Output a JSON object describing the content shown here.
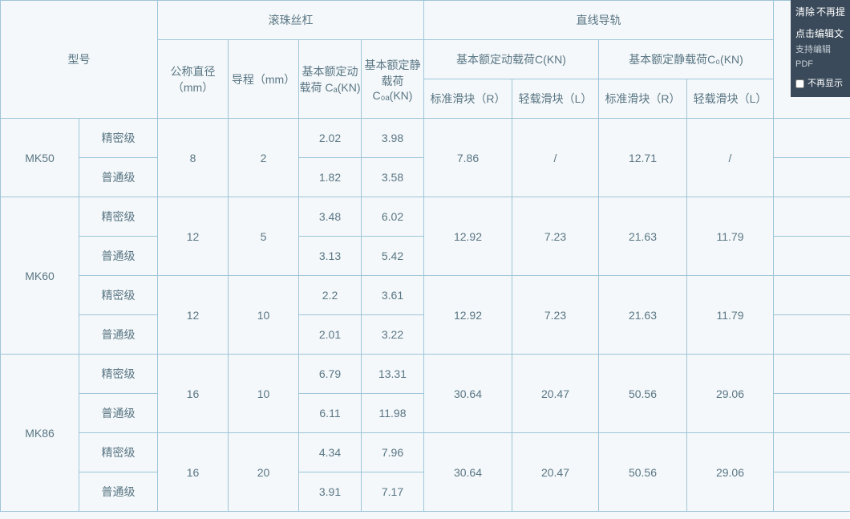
{
  "headers": {
    "model": "型号",
    "ballscrew": "滚珠丝杠",
    "linearGuide": "直线导轨",
    "nominalDia": "公称直径（mm）",
    "lead": "导程（mm）",
    "dynLoadCa": "基本额定动载荷 Cₐ(KN)",
    "statLoadCoa": "基本额定静载荷 C₀ₐ(KN)",
    "dynLoadC": "基本额定动载荷C(KN)",
    "statLoadC0": "基本额定静载荷C₀(KN)",
    "stdSliderR": "标准滑块（R）",
    "lightSliderL": "轻载滑块（L）"
  },
  "gradeLabels": {
    "precision": "精密级",
    "normal": "普通级"
  },
  "rows": [
    {
      "model": "MK50",
      "sub": [
        {
          "dia": "8",
          "lead": "2",
          "grades": [
            {
              "g": "precision",
              "ca": "2.02",
              "coa": "3.98"
            },
            {
              "g": "normal",
              "ca": "1.82",
              "coa": "3.58"
            }
          ],
          "guide": {
            "dynR": "7.86",
            "dynL": "/",
            "statR": "12.71",
            "statL": "/"
          }
        }
      ]
    },
    {
      "model": "MK60",
      "sub": [
        {
          "dia": "12",
          "lead": "5",
          "grades": [
            {
              "g": "precision",
              "ca": "3.48",
              "coa": "6.02"
            },
            {
              "g": "normal",
              "ca": "3.13",
              "coa": "5.42"
            }
          ],
          "guide": {
            "dynR": "12.92",
            "dynL": "7.23",
            "statR": "21.63",
            "statL": "11.79"
          }
        },
        {
          "dia": "12",
          "lead": "10",
          "grades": [
            {
              "g": "precision",
              "ca": "2.2",
              "coa": "3.61"
            },
            {
              "g": "normal",
              "ca": "2.01",
              "coa": "3.22"
            }
          ],
          "guide": {
            "dynR": "12.92",
            "dynL": "7.23",
            "statR": "21.63",
            "statL": "11.79"
          }
        }
      ]
    },
    {
      "model": "MK86",
      "sub": [
        {
          "dia": "16",
          "lead": "10",
          "grades": [
            {
              "g": "precision",
              "ca": "6.79",
              "coa": "13.31"
            },
            {
              "g": "normal",
              "ca": "6.11",
              "coa": "11.98"
            }
          ],
          "guide": {
            "dynR": "30.64",
            "dynL": "20.47",
            "statR": "50.56",
            "statL": "29.06"
          }
        },
        {
          "dia": "16",
          "lead": "20",
          "grades": [
            {
              "g": "precision",
              "ca": "4.34",
              "coa": "7.96"
            },
            {
              "g": "normal",
              "ca": "3.91",
              "coa": "7.17"
            }
          ],
          "guide": {
            "dynR": "30.64",
            "dynL": "20.47",
            "statR": "50.56",
            "statL": "29.06"
          }
        }
      ]
    }
  ],
  "sidebar": {
    "clear": "清除",
    "noRemind": "不再提",
    "clickEdit": "点击编辑文",
    "supportPdf": "支持编辑PDF",
    "noShow": "不再显示"
  },
  "colors": {
    "border": "#9ec5d8",
    "text": "#5a7684",
    "bg": "#f4f8fa",
    "sidebarBg": "#3a4a5a"
  }
}
